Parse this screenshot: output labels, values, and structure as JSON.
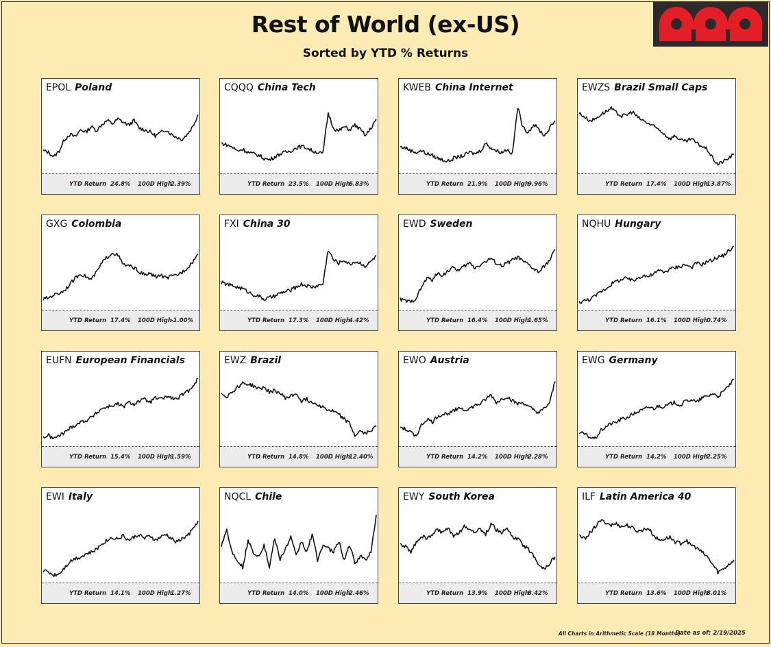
{
  "title": "Rest of World (ex-US)",
  "subtitle": "Sorted by YTD % Returns",
  "logo": {
    "color": "#e41e26",
    "background": "#2c2a2b"
  },
  "footnote": "All Charts in Arithmetic Scale (18 Months)",
  "date_label": "Date as of: 2/19/2025",
  "stat_labels": {
    "ytd": "YTD Return",
    "high": "100D High"
  },
  "chart_data": [
    {
      "type": "line",
      "ticker": "EPOL",
      "name": "Poland",
      "ytd_return": "24.8%",
      "high_100d": "2.39%",
      "y": [
        30,
        28,
        22,
        30,
        45,
        52,
        48,
        58,
        55,
        62,
        57,
        65,
        70,
        66,
        72,
        68,
        64,
        70,
        60,
        58,
        55,
        50,
        54,
        58,
        52,
        48,
        45,
        52,
        62,
        78
      ]
    },
    {
      "type": "line",
      "ticker": "CQQQ",
      "name": "China Tech",
      "ytd_return": "23.5%",
      "high_100d": "6.83%",
      "y": [
        40,
        38,
        35,
        30,
        32,
        28,
        26,
        24,
        20,
        18,
        22,
        26,
        28,
        30,
        34,
        36,
        34,
        30,
        28,
        26,
        80,
        60,
        56,
        62,
        58,
        64,
        58,
        50,
        60,
        72
      ]
    },
    {
      "type": "line",
      "ticker": "KWEB",
      "name": "China Internet",
      "ytd_return": "21.9%",
      "high_100d": "9.96%",
      "y": [
        35,
        34,
        30,
        28,
        30,
        26,
        24,
        20,
        18,
        16,
        20,
        22,
        24,
        28,
        26,
        30,
        40,
        34,
        30,
        28,
        32,
        26,
        88,
        60,
        55,
        65,
        58,
        50,
        60,
        70
      ]
    },
    {
      "type": "line",
      "ticker": "EWZS",
      "name": "Brazil Small Caps",
      "ytd_return": "17.4%",
      "high_100d": "13.87%",
      "y": [
        80,
        75,
        70,
        72,
        78,
        82,
        86,
        80,
        76,
        78,
        82,
        74,
        70,
        66,
        62,
        58,
        52,
        46,
        50,
        44,
        42,
        46,
        40,
        36,
        32,
        20,
        12,
        16,
        20,
        26
      ]
    },
    {
      "type": "line",
      "ticker": "GXG",
      "name": "Colombia",
      "ytd_return": "17.4%",
      "high_100d": "-1.00%",
      "y": [
        14,
        16,
        20,
        22,
        26,
        34,
        42,
        48,
        44,
        40,
        50,
        62,
        70,
        76,
        72,
        60,
        58,
        56,
        50,
        46,
        48,
        44,
        46,
        42,
        44,
        46,
        50,
        56,
        64,
        74
      ]
    },
    {
      "type": "line",
      "ticker": "FXI",
      "name": "China 30",
      "ytd_return": "17.3%",
      "high_100d": "4.42%",
      "y": [
        36,
        34,
        32,
        30,
        28,
        24,
        20,
        18,
        14,
        16,
        18,
        22,
        24,
        26,
        30,
        34,
        32,
        30,
        32,
        34,
        80,
        66,
        62,
        66,
        60,
        64,
        62,
        58,
        64,
        72
      ]
    },
    {
      "type": "line",
      "ticker": "EWD",
      "name": "Sweden",
      "ytd_return": "16.4%",
      "high_100d": "1.65%",
      "y": [
        14,
        12,
        10,
        16,
        30,
        42,
        40,
        48,
        46,
        52,
        56,
        52,
        58,
        62,
        56,
        60,
        64,
        68,
        62,
        58,
        62,
        66,
        70,
        64,
        60,
        54,
        50,
        58,
        66,
        80
      ]
    },
    {
      "type": "line",
      "ticker": "NQHU",
      "name": "Hungary",
      "ytd_return": "16.1%",
      "high_100d": "0.74%",
      "y": [
        10,
        12,
        14,
        18,
        24,
        28,
        34,
        38,
        40,
        42,
        38,
        42,
        46,
        44,
        48,
        52,
        50,
        54,
        56,
        58,
        60,
        56,
        62,
        60,
        64,
        66,
        70,
        72,
        78,
        84
      ]
    },
    {
      "type": "line",
      "ticker": "EUFN",
      "name": "European Financials",
      "ytd_return": "15.4%",
      "high_100d": "1.59%",
      "y": [
        12,
        14,
        10,
        14,
        18,
        24,
        28,
        32,
        34,
        38,
        44,
        50,
        52,
        54,
        56,
        52,
        58,
        56,
        60,
        62,
        58,
        64,
        62,
        66,
        64,
        62,
        68,
        72,
        80,
        90
      ]
    },
    {
      "type": "line",
      "ticker": "EWZ",
      "name": "Brazil",
      "ytd_return": "14.8%",
      "high_100d": "12.40%",
      "y": [
        70,
        66,
        72,
        78,
        84,
        82,
        80,
        76,
        78,
        72,
        74,
        70,
        64,
        66,
        70,
        60,
        62,
        58,
        56,
        52,
        48,
        46,
        42,
        36,
        30,
        14,
        20,
        16,
        22,
        26
      ]
    },
    {
      "type": "line",
      "ticker": "EWO",
      "name": "Austria",
      "ytd_return": "14.2%",
      "high_100d": "2.28%",
      "y": [
        26,
        22,
        18,
        14,
        28,
        36,
        32,
        40,
        42,
        44,
        46,
        52,
        48,
        50,
        54,
        56,
        62,
        68,
        58,
        62,
        66,
        60,
        56,
        58,
        52,
        48,
        44,
        50,
        58,
        86
      ]
    },
    {
      "type": "line",
      "ticker": "EWG",
      "name": "Germany",
      "ytd_return": "14.2%",
      "high_100d": "2.25%",
      "y": [
        18,
        16,
        12,
        10,
        20,
        26,
        30,
        32,
        36,
        38,
        42,
        46,
        48,
        52,
        50,
        54,
        52,
        56,
        58,
        54,
        60,
        62,
        58,
        64,
        66,
        70,
        66,
        72,
        80,
        88
      ]
    },
    {
      "type": "line",
      "ticker": "EWI",
      "name": "Italy",
      "ytd_return": "14.1%",
      "high_100d": "1.27%",
      "y": [
        16,
        14,
        10,
        12,
        20,
        28,
        32,
        34,
        38,
        40,
        44,
        52,
        56,
        60,
        58,
        62,
        56,
        60,
        64,
        58,
        62,
        56,
        60,
        64,
        58,
        54,
        58,
        62,
        70,
        82
      ]
    },
    {
      "type": "line",
      "ticker": "NQCL",
      "name": "Chile",
      "ytd_return": "14.0%",
      "high_100d": "2.46%",
      "y": [
        50,
        70,
        40,
        30,
        20,
        55,
        40,
        35,
        50,
        20,
        60,
        30,
        45,
        60,
        35,
        55,
        40,
        65,
        30,
        50,
        45,
        40,
        55,
        30,
        50,
        25,
        35,
        30,
        40,
        90
      ]
    },
    {
      "type": "line",
      "ticker": "EWY",
      "name": "South Korea",
      "ytd_return": "13.9%",
      "high_100d": "8.42%",
      "y": [
        50,
        48,
        40,
        54,
        62,
        58,
        64,
        70,
        66,
        72,
        60,
        66,
        74,
        70,
        68,
        72,
        64,
        78,
        70,
        66,
        72,
        60,
        58,
        50,
        44,
        36,
        24,
        18,
        26,
        34
      ]
    },
    {
      "type": "line",
      "ticker": "ILF",
      "name": "Latin America 40",
      "ytd_return": "13.6%",
      "high_100d": "8.01%",
      "y": [
        62,
        58,
        66,
        74,
        82,
        80,
        76,
        78,
        74,
        76,
        72,
        68,
        70,
        72,
        62,
        56,
        58,
        60,
        54,
        52,
        56,
        50,
        46,
        40,
        34,
        24,
        14,
        18,
        24,
        30
      ]
    }
  ]
}
